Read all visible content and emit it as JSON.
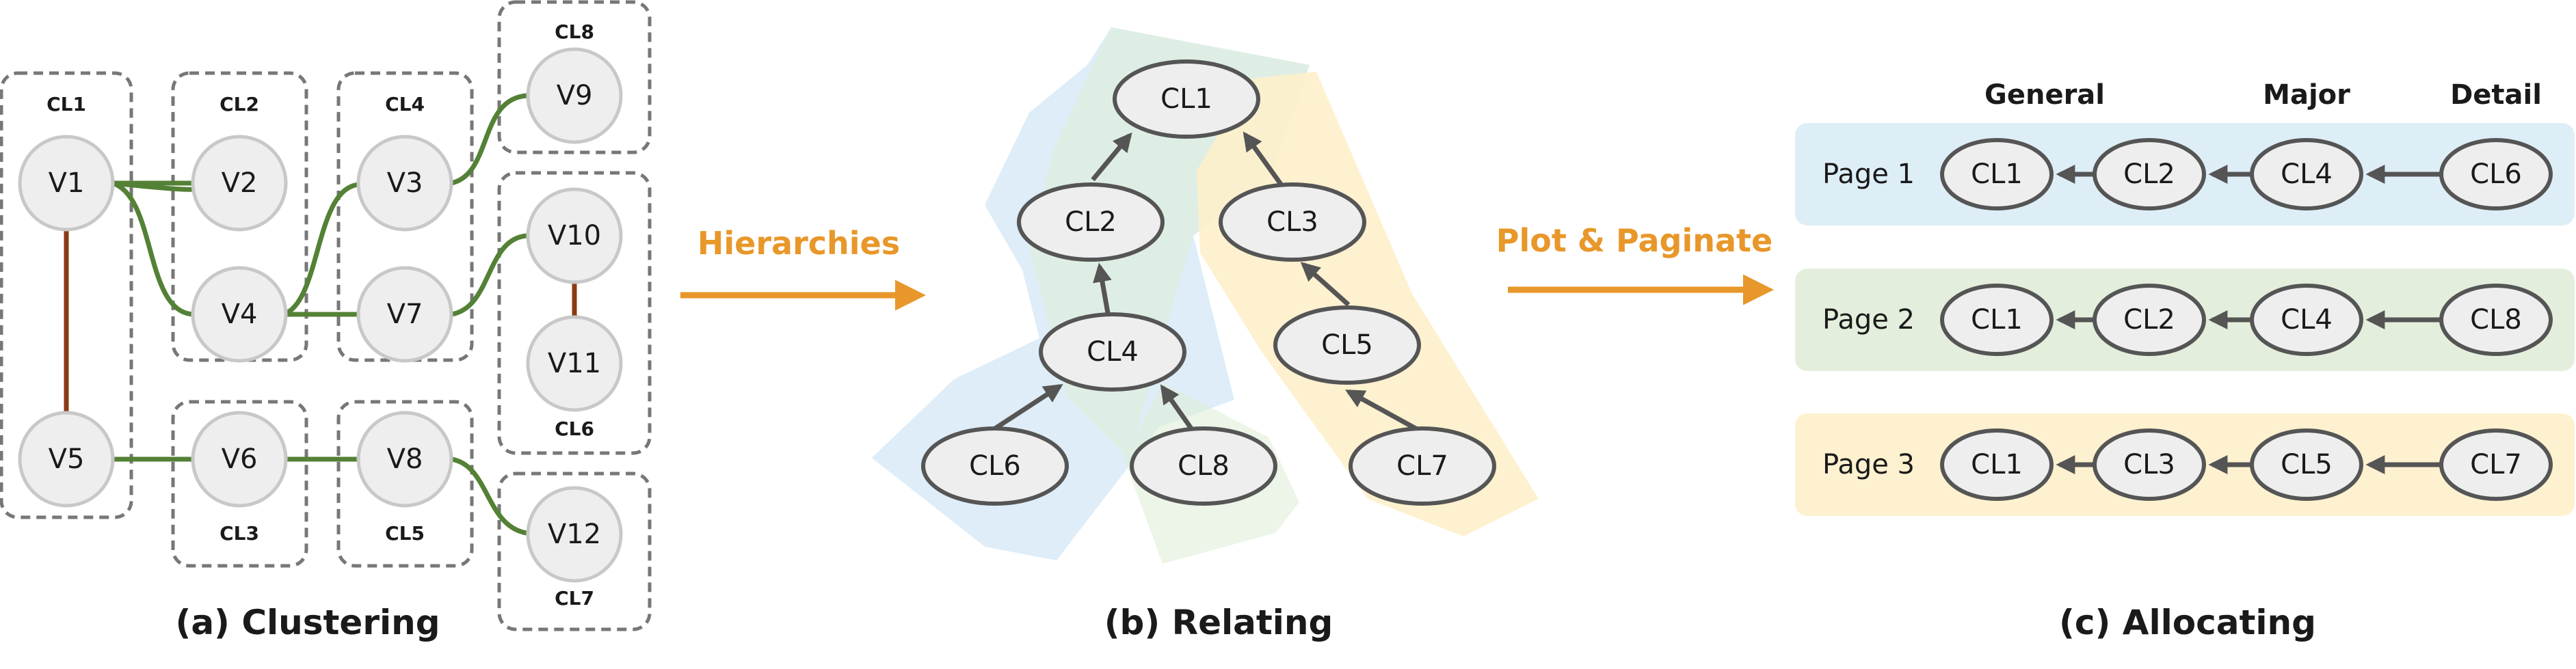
{
  "clustering": {
    "caption": "(a) Clustering",
    "clusters": {
      "cl1": "CL1",
      "cl2": "CL2",
      "cl3": "CL3",
      "cl4": "CL4",
      "cl5": "CL5",
      "cl6": "CL6",
      "cl7": "CL7",
      "cl8": "CL8"
    },
    "nodes": {
      "v1": "V1",
      "v2": "V2",
      "v3": "V3",
      "v4": "V4",
      "v5": "V5",
      "v6": "V6",
      "v7": "V7",
      "v8": "V8",
      "v9": "V9",
      "v10": "V10",
      "v11": "V11",
      "v12": "V12"
    }
  },
  "arrow1_label": "Hierarchies",
  "relating": {
    "caption": "(b) Relating",
    "nodes": {
      "cl1": "CL1",
      "cl2": "CL2",
      "cl3": "CL3",
      "cl4": "CL4",
      "cl5": "CL5",
      "cl6": "CL6",
      "cl7": "CL7",
      "cl8": "CL8"
    }
  },
  "arrow2_label": "Plot & Paginate",
  "allocating": {
    "caption": "(c) Allocating",
    "headers": {
      "general": "General",
      "major": "Major",
      "detail": "Detail"
    },
    "pages": [
      {
        "label": "Page 1",
        "nodes": [
          "CL1",
          "CL2",
          "CL4",
          "CL6"
        ]
      },
      {
        "label": "Page 2",
        "nodes": [
          "CL1",
          "CL2",
          "CL4",
          "CL8"
        ]
      },
      {
        "label": "Page 3",
        "nodes": [
          "CL1",
          "CL3",
          "CL5",
          "CL7"
        ]
      }
    ]
  },
  "colors": {
    "blue_band": "#deeef7",
    "green_band": "#e3efdc",
    "yellow_band": "#fdf1cf",
    "green_edge": "#538135",
    "brown_edge": "#8b3a14",
    "orange_arrow": "#e8972a"
  }
}
